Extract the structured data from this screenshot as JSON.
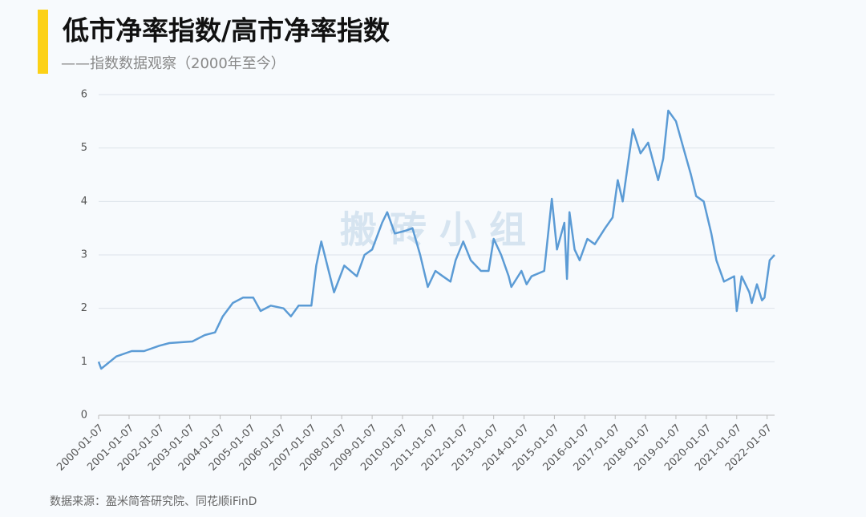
{
  "chart_data": {
    "type": "line",
    "title": "低市净率指数/高市净率指数",
    "subtitle": "——指数数据观察（2000年至今）",
    "source": "数据来源：盈米简答研究院、同花顺iFinD",
    "watermark": "搬 砖 小 组",
    "color": "#5b9bd5",
    "grid": true,
    "ylim": [
      0,
      6
    ],
    "yticks": [
      0,
      1,
      2,
      3,
      4,
      5,
      6
    ],
    "xlim": [
      "2000-01-07",
      "2022-04-07"
    ],
    "xticks": [
      "2000-01-07",
      "2001-01-07",
      "2002-01-07",
      "2003-01-07",
      "2004-01-07",
      "2005-01-07",
      "2006-01-07",
      "2007-01-07",
      "2008-01-07",
      "2009-01-07",
      "2010-01-07",
      "2011-01-07",
      "2012-01-07",
      "2013-01-07",
      "2014-01-07",
      "2015-01-07",
      "2016-01-07",
      "2017-01-07",
      "2018-01-07",
      "2019-01-07",
      "2020-01-07",
      "2021-01-07",
      "2022-01-07"
    ],
    "x": [
      "2000-01-07",
      "2000-02-07",
      "2000-08-07",
      "2001-02-07",
      "2001-07-07",
      "2002-01-07",
      "2002-05-07",
      "2003-02-07",
      "2003-07-07",
      "2003-11-07",
      "2004-02-07",
      "2004-06-07",
      "2004-10-07",
      "2005-02-07",
      "2005-05-07",
      "2005-09-07",
      "2006-02-07",
      "2006-05-07",
      "2006-08-07",
      "2007-01-07",
      "2007-03-07",
      "2007-05-07",
      "2007-10-07",
      "2008-02-07",
      "2008-07-07",
      "2008-10-07",
      "2009-01-07",
      "2009-05-07",
      "2009-07-07",
      "2009-10-07",
      "2010-02-07",
      "2010-05-07",
      "2010-08-07",
      "2010-11-07",
      "2011-02-07",
      "2011-05-07",
      "2011-08-07",
      "2011-10-07",
      "2012-01-07",
      "2012-04-07",
      "2012-08-07",
      "2012-11-07",
      "2013-01-07",
      "2013-04-07",
      "2013-07-07",
      "2013-08-07",
      "2013-12-07",
      "2014-02-07",
      "2014-04-07",
      "2014-09-07",
      "2014-12-07",
      "2015-02-07",
      "2015-05-07",
      "2015-06-07",
      "2015-07-07",
      "2015-09-07",
      "2015-11-07",
      "2016-02-07",
      "2016-05-07",
      "2016-09-07",
      "2016-12-07",
      "2017-02-07",
      "2017-04-07",
      "2017-08-07",
      "2017-11-07",
      "2018-02-07",
      "2018-06-07",
      "2018-08-07",
      "2018-10-07",
      "2019-01-07",
      "2019-04-07",
      "2019-07-07",
      "2019-09-07",
      "2019-12-07",
      "2020-03-07",
      "2020-05-07",
      "2020-08-07",
      "2020-12-07",
      "2021-01-07",
      "2021-03-07",
      "2021-06-07",
      "2021-07-07",
      "2021-09-07",
      "2021-11-07",
      "2021-12-07",
      "2022-02-07",
      "2022-04-07"
    ],
    "values": [
      1.0,
      0.87,
      1.1,
      1.2,
      1.2,
      1.3,
      1.35,
      1.38,
      1.5,
      1.55,
      1.85,
      2.1,
      2.2,
      2.2,
      1.95,
      2.05,
      2.0,
      1.85,
      2.05,
      2.05,
      2.8,
      3.25,
      2.3,
      2.8,
      2.6,
      3.0,
      3.1,
      3.6,
      3.8,
      3.4,
      3.45,
      3.5,
      3.0,
      2.4,
      2.7,
      2.6,
      2.5,
      2.9,
      3.25,
      2.9,
      2.7,
      2.7,
      3.3,
      3.0,
      2.6,
      2.4,
      2.7,
      2.45,
      2.6,
      2.7,
      4.05,
      3.1,
      3.6,
      2.55,
      3.8,
      3.1,
      2.9,
      3.3,
      3.2,
      3.5,
      3.7,
      4.4,
      4.0,
      5.35,
      4.9,
      5.1,
      4.4,
      4.8,
      5.7,
      5.5,
      5.0,
      4.5,
      4.1,
      4.0,
      3.4,
      2.9,
      2.5,
      2.6,
      1.95,
      2.6,
      2.3,
      2.1,
      2.45,
      2.15,
      2.2,
      2.9,
      3.0
    ]
  }
}
